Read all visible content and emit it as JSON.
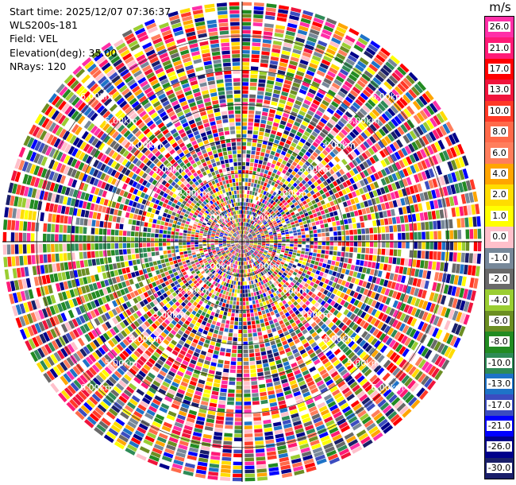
{
  "info": {
    "start_time": "Start time: 2025/12/07 07:36:37",
    "instrument": "WLS200s-181",
    "field": "Field: VEL",
    "elevation": "Elevation(deg): 35.00",
    "nrays": "NRays: 120"
  },
  "colorbar": {
    "unit": "m/s",
    "ticks": [
      "26.0",
      "21.0",
      "17.0",
      "13.0",
      "10.0",
      "8.0",
      "6.0",
      "4.0",
      "2.0",
      "1.0",
      "0.0",
      "-1.0",
      "-2.0",
      "-4.0",
      "-6.0",
      "-8.0",
      "-10.0",
      "-13.0",
      "-17.0",
      "-21.0",
      "-26.0",
      "-30.0"
    ],
    "colors": [
      "#ff2fa8",
      "#ff1a76",
      "#ff0000",
      "#f0143c",
      "#ff3a28",
      "#ff6a4a",
      "#ff7e5c",
      "#ffa500",
      "#ffdc00",
      "#ffff00",
      "#ffc0cb",
      "#778899",
      "#696969",
      "#9acd32",
      "#6b8e23",
      "#228b22",
      "#2e8b57",
      "#1e73c8",
      "#3b4cc0",
      "#0000ff",
      "#00008b",
      "#1a1f6a"
    ]
  },
  "chart_data": {
    "type": "heatmap",
    "title": "",
    "field": "VEL",
    "units": "m/s",
    "projection": "polar PPI",
    "nrays": 120,
    "azimuth_step_deg": 3,
    "range_rings_km": [
      1,
      2,
      3,
      4,
      5,
      6
    ],
    "range_ring_labels": [
      "1.00km",
      "2.00km",
      "3.00km",
      "4.00km",
      "5.00km",
      "6.00km"
    ],
    "value_range": [
      -30,
      30
    ],
    "values_note": "noisy velocity field, values span full color scale"
  }
}
